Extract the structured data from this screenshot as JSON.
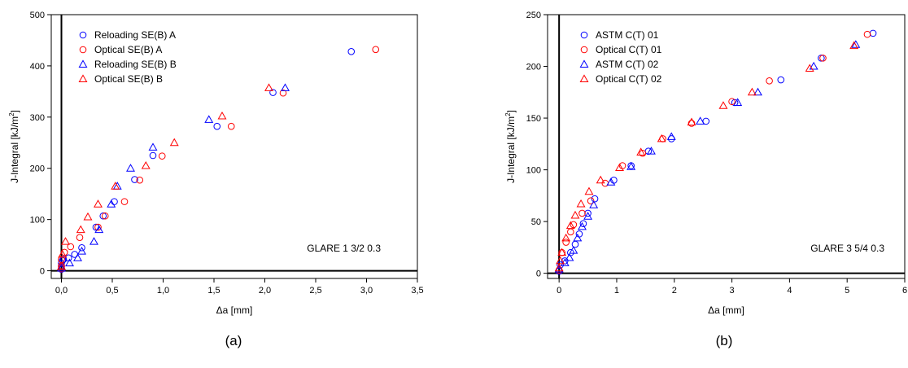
{
  "colors": {
    "blue": "#0000ff",
    "red": "#ff0000",
    "axis": "#000000"
  },
  "chart_data": [
    {
      "type": "scatter",
      "caption": "(a)",
      "xlabel": "Δa [mm]",
      "ylabel_main": "J-Integral [kJ/m",
      "ylabel_sup": "2",
      "ylabel_end": "]",
      "annotation": "GLARE 1 3/2 0.3",
      "xlim": [
        -0.1,
        3.5
      ],
      "ylim": [
        -15,
        500
      ],
      "xticks": [
        0.0,
        0.5,
        1.0,
        1.5,
        2.0,
        2.5,
        3.0,
        3.5
      ],
      "xtick_labels": [
        "0,0",
        "0,5",
        "1,0",
        "1,5",
        "2,0",
        "2,5",
        "3,0",
        "3,5"
      ],
      "yticks": [
        0,
        100,
        200,
        300,
        400,
        500
      ],
      "ytick_labels": [
        "0",
        "100",
        "200",
        "300",
        "400",
        "500"
      ],
      "grid": false,
      "legend_position": "top-left",
      "series": [
        {
          "name": "Reloading SE(B) A",
          "marker": "circle",
          "color": "#0000ff",
          "x": [
            0.0,
            0.0,
            0.0,
            0.01,
            0.02,
            0.07,
            0.13,
            0.2,
            0.34,
            0.41,
            0.52,
            0.72,
            0.9,
            1.53,
            2.08,
            2.85
          ],
          "y": [
            3,
            8,
            15,
            20,
            22,
            25,
            32,
            45,
            85,
            107,
            135,
            178,
            225,
            282,
            348,
            428
          ]
        },
        {
          "name": "Optical SE(B) A",
          "marker": "circle",
          "color": "#ff0000",
          "x": [
            0.0,
            0.0,
            0.0,
            0.03,
            0.09,
            0.18,
            0.36,
            0.43,
            0.62,
            0.77,
            0.99,
            1.67,
            2.18,
            3.09
          ],
          "y": [
            4,
            10,
            22,
            36,
            47,
            65,
            85,
            107,
            135,
            177,
            224,
            282,
            347,
            432
          ]
        },
        {
          "name": "Reloading SE(B) B",
          "marker": "triangle",
          "color": "#0000ff",
          "x": [
            0.0,
            0.08,
            0.16,
            0.2,
            0.32,
            0.37,
            0.49,
            0.55,
            0.68,
            0.9,
            1.45,
            2.2
          ],
          "y": [
            5,
            15,
            25,
            38,
            57,
            80,
            130,
            165,
            200,
            241,
            295,
            357
          ]
        },
        {
          "name": "Optical SE(B) B",
          "marker": "triangle",
          "color": "#ff0000",
          "x": [
            0.0,
            0.01,
            0.04,
            0.19,
            0.26,
            0.36,
            0.53,
            0.83,
            1.11,
            1.58,
            2.04
          ],
          "y": [
            8,
            32,
            57,
            80,
            105,
            130,
            165,
            205,
            250,
            302,
            357
          ]
        }
      ]
    },
    {
      "type": "scatter",
      "caption": "(b)",
      "xlabel": "Δa [mm]",
      "ylabel_main": "J-Integral [kJ/m",
      "ylabel_sup": "2",
      "ylabel_end": "]",
      "annotation": "GLARE 3 5/4 0.3",
      "xlim": [
        -0.2,
        6
      ],
      "ylim": [
        -5,
        250
      ],
      "xticks": [
        0,
        1,
        2,
        3,
        4,
        5,
        6
      ],
      "xtick_labels": [
        "0",
        "1",
        "2",
        "3",
        "4",
        "5",
        "6"
      ],
      "yticks": [
        0,
        50,
        100,
        150,
        200,
        250
      ],
      "ytick_labels": [
        "0",
        "50",
        "100",
        "150",
        "200",
        "250"
      ],
      "grid": false,
      "legend_position": "top-left",
      "series": [
        {
          "name": "ASTM C(T) 01",
          "marker": "circle",
          "color": "#0000ff",
          "x": [
            0.0,
            0.02,
            0.1,
            0.2,
            0.28,
            0.35,
            0.42,
            0.5,
            0.62,
            0.95,
            1.25,
            1.55,
            1.95,
            2.55,
            3.05,
            3.85,
            4.55,
            5.45
          ],
          "y": [
            2,
            8,
            12,
            20,
            28,
            38,
            48,
            58,
            72,
            90,
            104,
            118,
            130,
            147,
            165,
            187,
            208,
            232
          ]
        },
        {
          "name": "Optical C(T) 01",
          "marker": "circle",
          "color": "#ff0000",
          "x": [
            0.0,
            0.05,
            0.12,
            0.2,
            0.25,
            0.4,
            0.55,
            0.8,
            1.1,
            1.45,
            1.8,
            2.3,
            3.0,
            3.65,
            4.58,
            5.35
          ],
          "y": [
            3,
            20,
            30,
            40,
            47,
            58,
            70,
            87,
            104,
            116,
            130,
            145,
            166,
            186,
            208,
            231
          ]
        },
        {
          "name": "ASTM C(T) 02",
          "marker": "triangle",
          "color": "#0000ff",
          "x": [
            0.0,
            0.1,
            0.18,
            0.25,
            0.32,
            0.4,
            0.5,
            0.6,
            0.9,
            1.25,
            1.6,
            1.95,
            2.45,
            3.1,
            3.45,
            4.42,
            5.15
          ],
          "y": [
            4,
            10,
            15,
            22,
            34,
            45,
            55,
            66,
            88,
            103,
            118,
            132,
            147,
            165,
            175,
            200,
            221
          ]
        },
        {
          "name": "Optical C(T) 02",
          "marker": "triangle",
          "color": "#ff0000",
          "x": [
            0.0,
            0.02,
            0.05,
            0.12,
            0.2,
            0.28,
            0.38,
            0.52,
            0.72,
            1.05,
            1.42,
            1.78,
            2.3,
            2.85,
            3.35,
            4.35,
            5.12
          ],
          "y": [
            5,
            12,
            20,
            34,
            46,
            56,
            67,
            79,
            90,
            102,
            117,
            130,
            146,
            162,
            175,
            198,
            220
          ]
        }
      ]
    }
  ]
}
